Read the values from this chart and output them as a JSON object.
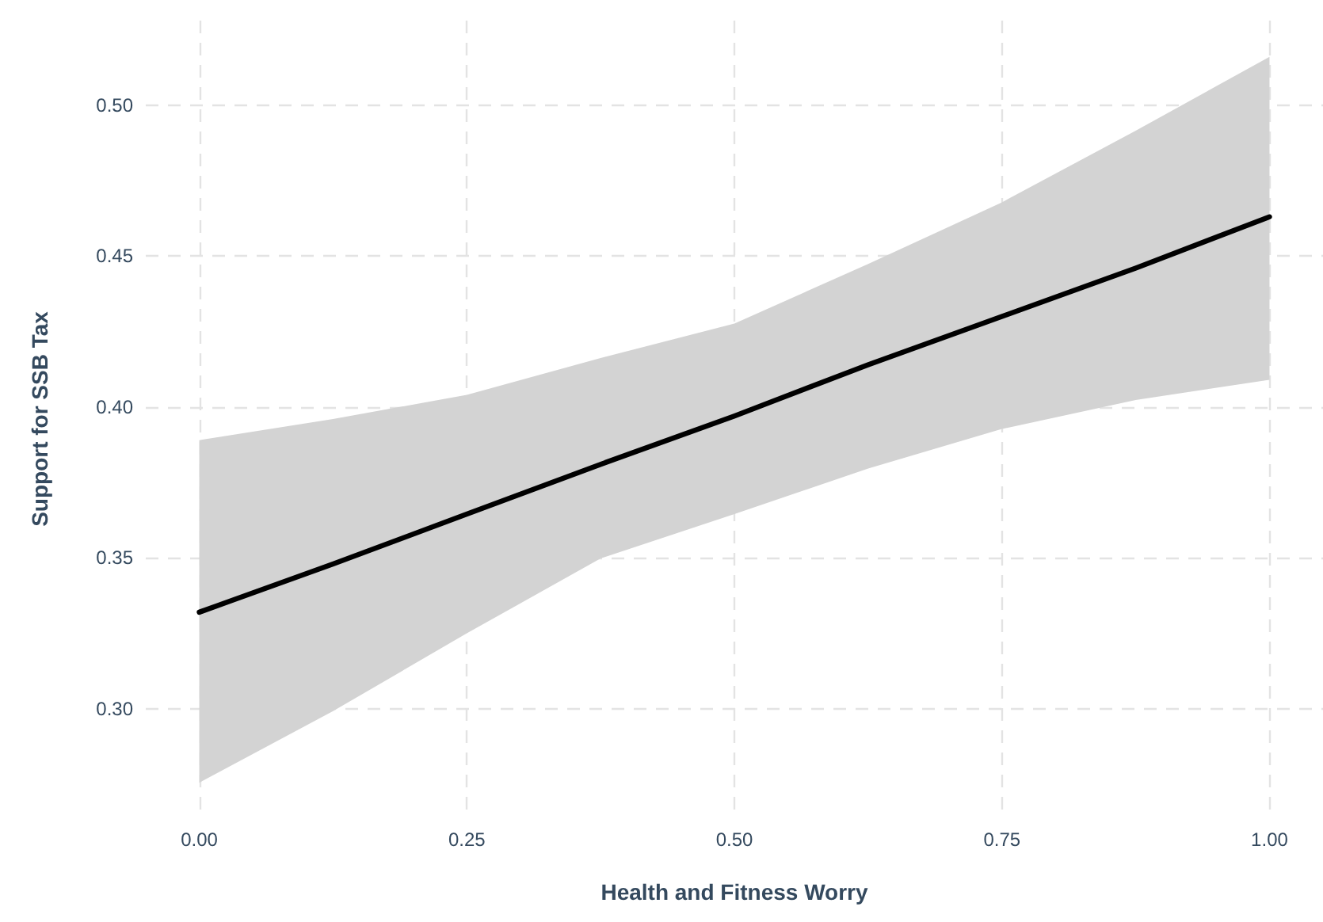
{
  "chart_data": {
    "type": "line",
    "xlabel": "Health and Fitness Worry",
    "ylabel": "Support for SSB Tax",
    "series": [
      {
        "color": "#000000",
        "x": [
          0,
          0.125,
          0.25,
          0.375,
          0.5,
          0.625,
          0.75,
          0.875,
          1
        ],
        "values": [
          0.332,
          0.348,
          0.3645,
          0.381,
          0.397,
          0.414,
          0.43,
          0.446,
          0.463
        ],
        "lower": [
          0.2755,
          0.2992,
          0.325,
          0.3498,
          0.3645,
          0.3796,
          0.3927,
          0.4023,
          0.409
        ],
        "upper": [
          0.389,
          0.396,
          0.404,
          0.4162,
          0.4276,
          0.4474,
          0.4678,
          0.4915,
          0.516
        ]
      }
    ],
    "xlim": [
      -0.05,
      1.05
    ],
    "xticks": [
      {
        "value": 0,
        "label": "0.00"
      },
      {
        "value": 0.25,
        "label": "0.25"
      },
      {
        "value": 0.5,
        "label": "0.50"
      },
      {
        "value": 0.75,
        "label": "0.75"
      },
      {
        "value": 1,
        "label": "1.00"
      }
    ],
    "ylim": [
      0.264,
      0.528
    ],
    "yticks": [
      {
        "value": 0.3,
        "label": "0.30"
      },
      {
        "value": 0.35,
        "label": "0.35"
      },
      {
        "value": 0.4,
        "label": "0.40"
      },
      {
        "value": 0.45,
        "label": "0.45"
      },
      {
        "value": 0.5,
        "label": "0.50"
      }
    ],
    "grid": true,
    "marker": "none",
    "line_style": "solid"
  }
}
